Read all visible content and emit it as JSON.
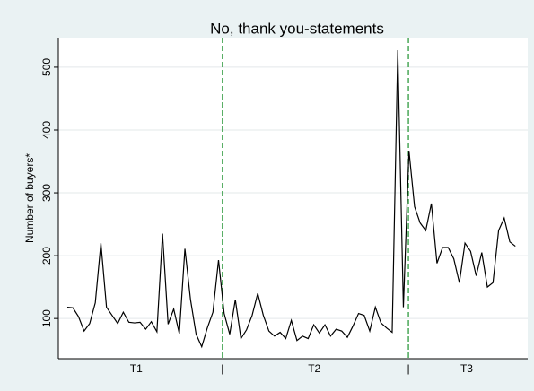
{
  "chart_data": {
    "type": "line",
    "title": "No, thank you-statements",
    "y_label": "Number of buyers*",
    "x": [
      1,
      2,
      3,
      4,
      5,
      6,
      7,
      8,
      9,
      10,
      11,
      12,
      13,
      14,
      15,
      16,
      17,
      18,
      19,
      20,
      21,
      22,
      23,
      24,
      25,
      26,
      27,
      28,
      29,
      30,
      31,
      32,
      33,
      34,
      35,
      36,
      37,
      38,
      39,
      40,
      41,
      42,
      43,
      44,
      45,
      46,
      47,
      48,
      49,
      50,
      51,
      52,
      53,
      54,
      55,
      56,
      57,
      58,
      59,
      60,
      61,
      62,
      63,
      64,
      65,
      66,
      67,
      68,
      69,
      70,
      71,
      72,
      73,
      74,
      75,
      76,
      77,
      78,
      79,
      80,
      81
    ],
    "values": [
      118,
      117,
      103,
      80,
      92,
      125,
      220,
      118,
      105,
      92,
      110,
      94,
      93,
      94,
      83,
      95,
      79,
      235,
      91,
      115,
      76,
      211,
      130,
      75,
      55,
      85,
      110,
      193,
      108,
      75,
      130,
      68,
      82,
      105,
      140,
      105,
      80,
      72,
      78,
      68,
      97,
      65,
      72,
      68,
      90,
      77,
      90,
      72,
      83,
      80,
      70,
      88,
      108,
      105,
      80,
      118,
      93,
      85,
      78,
      527,
      118,
      367,
      278,
      252,
      240,
      283,
      188,
      213,
      213,
      195,
      157,
      220,
      207,
      168,
      205,
      150,
      157,
      240,
      260,
      222,
      215
    ],
    "color": "#000000",
    "xlim": [
      -0.6,
      83.2
    ],
    "ylim": [
      36,
      547
    ],
    "yticks": [
      100,
      200,
      300,
      400,
      500
    ],
    "xticks": [
      {
        "value": 13.3,
        "label": "T1"
      },
      {
        "value": 28.7,
        "label": "|"
      },
      {
        "value": 45.1,
        "label": "T2"
      },
      {
        "value": 61.9,
        "label": "|"
      },
      {
        "value": 72.3,
        "label": "T3"
      }
    ],
    "vlines": [
      28.7,
      61.9
    ],
    "vline_color": "#2e9a3e",
    "grid": true
  }
}
